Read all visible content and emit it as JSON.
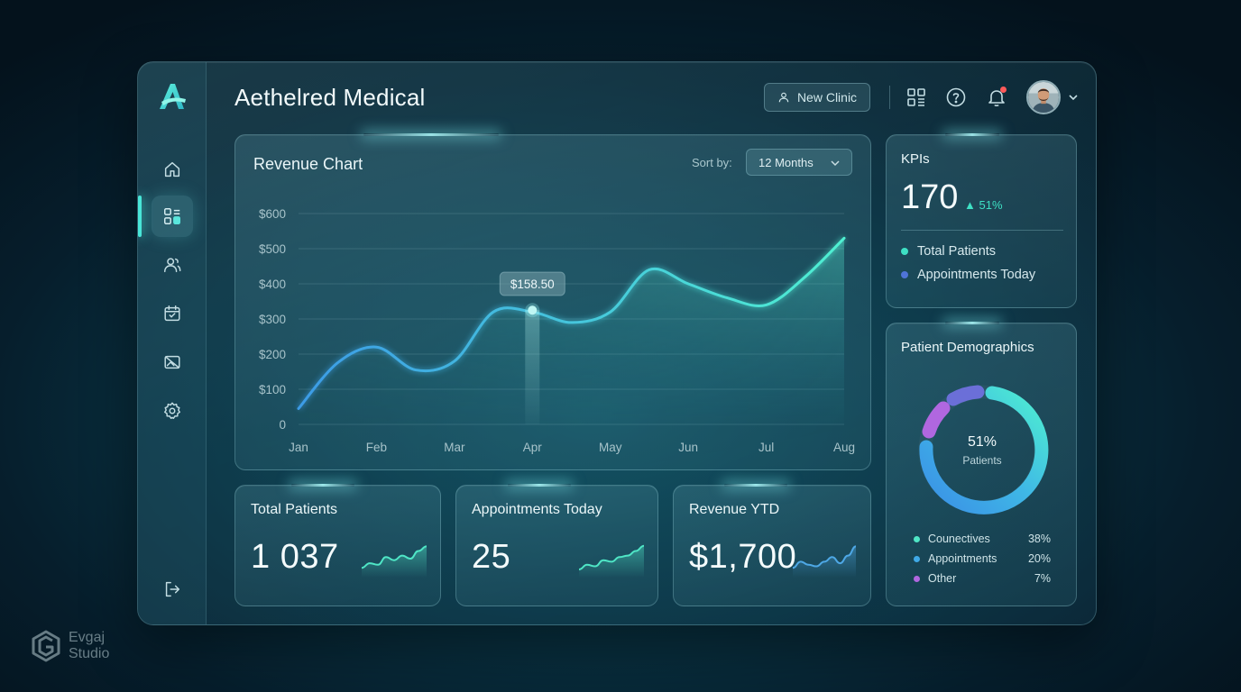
{
  "app": {
    "title": "Aethelred Medical"
  },
  "header": {
    "new_clinic_label": "New Clinic"
  },
  "sidebar": {
    "items": [
      {
        "icon": "home-icon"
      },
      {
        "icon": "dashboard-icon",
        "active": true
      },
      {
        "icon": "users-icon"
      },
      {
        "icon": "calendar-icon"
      },
      {
        "icon": "image-icon"
      },
      {
        "icon": "settings-icon"
      },
      {
        "icon": "logout-icon"
      }
    ]
  },
  "revenue_chart": {
    "title": "Revenue Chart",
    "sort_label": "Sort by:",
    "sort_value": "12 Months",
    "tooltip": "$158.50"
  },
  "chart_data": {
    "type": "area",
    "title": "Revenue Chart",
    "categories": [
      "Jan",
      "Feb",
      "Mar",
      "Apr",
      "May",
      "Jun",
      "Jul",
      "Aug"
    ],
    "y_ticks": [
      "$600",
      "$500",
      "$400",
      "$300",
      "$200",
      "$100",
      "0"
    ],
    "ylim": [
      0,
      600
    ],
    "x": [
      0,
      0.5,
      1,
      1.5,
      2,
      2.5,
      3,
      3.5,
      4,
      4.5,
      5,
      5.5,
      6,
      6.5,
      7
    ],
    "values": [
      45,
      175,
      220,
      155,
      180,
      320,
      320,
      290,
      320,
      440,
      400,
      360,
      340,
      420,
      530
    ],
    "highlight": {
      "x": 3,
      "value": 325,
      "label": "$158.50"
    },
    "grid": true,
    "colors": {
      "start": "#3c9be6",
      "end": "#4ff0d2"
    }
  },
  "stats": [
    {
      "label": "Total Patients",
      "value": "1 037",
      "color": "#4fe6c6"
    },
    {
      "label": "Appointments Today",
      "value": "25",
      "color": "#4fe6c6"
    },
    {
      "label": "Revenue YTD",
      "value": "$1,700",
      "color": "#4ea8e6"
    }
  ],
  "kpis": {
    "title": "KPIs",
    "value": "170",
    "delta": "51%",
    "items": [
      {
        "label": "Total Patients",
        "color": "#3ee0c4"
      },
      {
        "label": "Appointments Today",
        "color": "#4f74d8"
      }
    ]
  },
  "demographics": {
    "title": "Patient Demographics",
    "center_pct": "51%",
    "center_label": "Patients",
    "legend": [
      {
        "label": "Counectives",
        "pct": "38%",
        "color": "#4fe6c6"
      },
      {
        "label": "Appointments",
        "pct": "20%",
        "color": "#3fa9e6"
      },
      {
        "label": "Other",
        "pct": "7%",
        "color": "#b067e0"
      }
    ]
  },
  "brand": {
    "line1": "Evgaj",
    "line2": "Studio"
  }
}
